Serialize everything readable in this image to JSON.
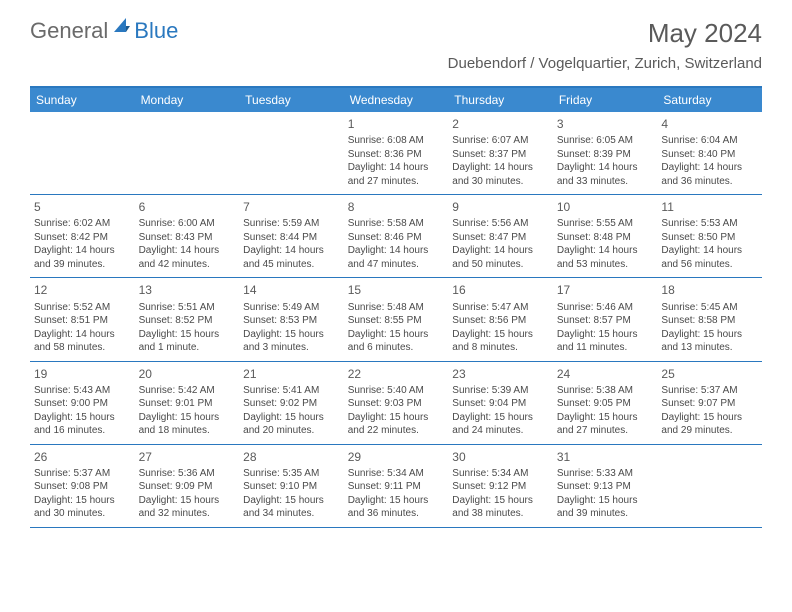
{
  "logo": {
    "text1": "General",
    "text2": "Blue"
  },
  "title": "May 2024",
  "location": "Duebendorf / Vogelquartier, Zurich, Switzerland",
  "colors": {
    "header_bg": "#3a89cf",
    "border": "#2a78bf",
    "text_gray": "#5a5a5a",
    "text_dark": "#4a4a4a",
    "white": "#ffffff"
  },
  "weekdays": [
    "Sunday",
    "Monday",
    "Tuesday",
    "Wednesday",
    "Thursday",
    "Friday",
    "Saturday"
  ],
  "weeks": [
    [
      null,
      null,
      null,
      {
        "n": "1",
        "sr": "Sunrise: 6:08 AM",
        "ss": "Sunset: 8:36 PM",
        "d1": "Daylight: 14 hours",
        "d2": "and 27 minutes."
      },
      {
        "n": "2",
        "sr": "Sunrise: 6:07 AM",
        "ss": "Sunset: 8:37 PM",
        "d1": "Daylight: 14 hours",
        "d2": "and 30 minutes."
      },
      {
        "n": "3",
        "sr": "Sunrise: 6:05 AM",
        "ss": "Sunset: 8:39 PM",
        "d1": "Daylight: 14 hours",
        "d2": "and 33 minutes."
      },
      {
        "n": "4",
        "sr": "Sunrise: 6:04 AM",
        "ss": "Sunset: 8:40 PM",
        "d1": "Daylight: 14 hours",
        "d2": "and 36 minutes."
      }
    ],
    [
      {
        "n": "5",
        "sr": "Sunrise: 6:02 AM",
        "ss": "Sunset: 8:42 PM",
        "d1": "Daylight: 14 hours",
        "d2": "and 39 minutes."
      },
      {
        "n": "6",
        "sr": "Sunrise: 6:00 AM",
        "ss": "Sunset: 8:43 PM",
        "d1": "Daylight: 14 hours",
        "d2": "and 42 minutes."
      },
      {
        "n": "7",
        "sr": "Sunrise: 5:59 AM",
        "ss": "Sunset: 8:44 PM",
        "d1": "Daylight: 14 hours",
        "d2": "and 45 minutes."
      },
      {
        "n": "8",
        "sr": "Sunrise: 5:58 AM",
        "ss": "Sunset: 8:46 PM",
        "d1": "Daylight: 14 hours",
        "d2": "and 47 minutes."
      },
      {
        "n": "9",
        "sr": "Sunrise: 5:56 AM",
        "ss": "Sunset: 8:47 PM",
        "d1": "Daylight: 14 hours",
        "d2": "and 50 minutes."
      },
      {
        "n": "10",
        "sr": "Sunrise: 5:55 AM",
        "ss": "Sunset: 8:48 PM",
        "d1": "Daylight: 14 hours",
        "d2": "and 53 minutes."
      },
      {
        "n": "11",
        "sr": "Sunrise: 5:53 AM",
        "ss": "Sunset: 8:50 PM",
        "d1": "Daylight: 14 hours",
        "d2": "and 56 minutes."
      }
    ],
    [
      {
        "n": "12",
        "sr": "Sunrise: 5:52 AM",
        "ss": "Sunset: 8:51 PM",
        "d1": "Daylight: 14 hours",
        "d2": "and 58 minutes."
      },
      {
        "n": "13",
        "sr": "Sunrise: 5:51 AM",
        "ss": "Sunset: 8:52 PM",
        "d1": "Daylight: 15 hours",
        "d2": "and 1 minute."
      },
      {
        "n": "14",
        "sr": "Sunrise: 5:49 AM",
        "ss": "Sunset: 8:53 PM",
        "d1": "Daylight: 15 hours",
        "d2": "and 3 minutes."
      },
      {
        "n": "15",
        "sr": "Sunrise: 5:48 AM",
        "ss": "Sunset: 8:55 PM",
        "d1": "Daylight: 15 hours",
        "d2": "and 6 minutes."
      },
      {
        "n": "16",
        "sr": "Sunrise: 5:47 AM",
        "ss": "Sunset: 8:56 PM",
        "d1": "Daylight: 15 hours",
        "d2": "and 8 minutes."
      },
      {
        "n": "17",
        "sr": "Sunrise: 5:46 AM",
        "ss": "Sunset: 8:57 PM",
        "d1": "Daylight: 15 hours",
        "d2": "and 11 minutes."
      },
      {
        "n": "18",
        "sr": "Sunrise: 5:45 AM",
        "ss": "Sunset: 8:58 PM",
        "d1": "Daylight: 15 hours",
        "d2": "and 13 minutes."
      }
    ],
    [
      {
        "n": "19",
        "sr": "Sunrise: 5:43 AM",
        "ss": "Sunset: 9:00 PM",
        "d1": "Daylight: 15 hours",
        "d2": "and 16 minutes."
      },
      {
        "n": "20",
        "sr": "Sunrise: 5:42 AM",
        "ss": "Sunset: 9:01 PM",
        "d1": "Daylight: 15 hours",
        "d2": "and 18 minutes."
      },
      {
        "n": "21",
        "sr": "Sunrise: 5:41 AM",
        "ss": "Sunset: 9:02 PM",
        "d1": "Daylight: 15 hours",
        "d2": "and 20 minutes."
      },
      {
        "n": "22",
        "sr": "Sunrise: 5:40 AM",
        "ss": "Sunset: 9:03 PM",
        "d1": "Daylight: 15 hours",
        "d2": "and 22 minutes."
      },
      {
        "n": "23",
        "sr": "Sunrise: 5:39 AM",
        "ss": "Sunset: 9:04 PM",
        "d1": "Daylight: 15 hours",
        "d2": "and 24 minutes."
      },
      {
        "n": "24",
        "sr": "Sunrise: 5:38 AM",
        "ss": "Sunset: 9:05 PM",
        "d1": "Daylight: 15 hours",
        "d2": "and 27 minutes."
      },
      {
        "n": "25",
        "sr": "Sunrise: 5:37 AM",
        "ss": "Sunset: 9:07 PM",
        "d1": "Daylight: 15 hours",
        "d2": "and 29 minutes."
      }
    ],
    [
      {
        "n": "26",
        "sr": "Sunrise: 5:37 AM",
        "ss": "Sunset: 9:08 PM",
        "d1": "Daylight: 15 hours",
        "d2": "and 30 minutes."
      },
      {
        "n": "27",
        "sr": "Sunrise: 5:36 AM",
        "ss": "Sunset: 9:09 PM",
        "d1": "Daylight: 15 hours",
        "d2": "and 32 minutes."
      },
      {
        "n": "28",
        "sr": "Sunrise: 5:35 AM",
        "ss": "Sunset: 9:10 PM",
        "d1": "Daylight: 15 hours",
        "d2": "and 34 minutes."
      },
      {
        "n": "29",
        "sr": "Sunrise: 5:34 AM",
        "ss": "Sunset: 9:11 PM",
        "d1": "Daylight: 15 hours",
        "d2": "and 36 minutes."
      },
      {
        "n": "30",
        "sr": "Sunrise: 5:34 AM",
        "ss": "Sunset: 9:12 PM",
        "d1": "Daylight: 15 hours",
        "d2": "and 38 minutes."
      },
      {
        "n": "31",
        "sr": "Sunrise: 5:33 AM",
        "ss": "Sunset: 9:13 PM",
        "d1": "Daylight: 15 hours",
        "d2": "and 39 minutes."
      },
      null
    ]
  ]
}
